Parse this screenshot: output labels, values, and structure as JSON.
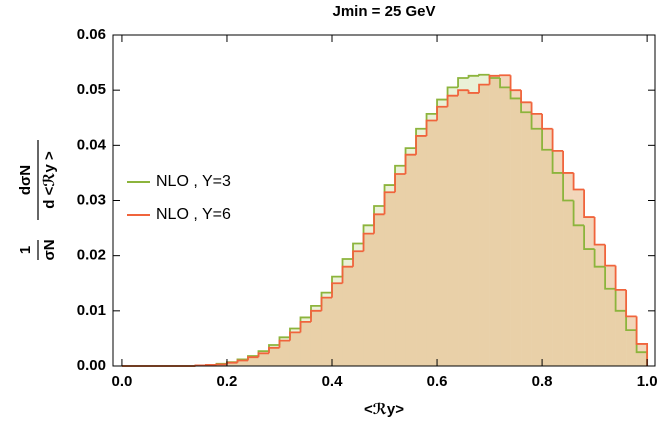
{
  "chart_data": {
    "type": "histogram",
    "title": "Jmin = 25 GeV",
    "xlabel": "<ℛy>",
    "ylabel": {
      "left_numerator": "1",
      "left_denominator": "σN",
      "right_numerator": "dσN",
      "right_denominator": "d <ℛy >"
    },
    "bins": [
      0,
      0.02,
      0.04,
      0.06,
      0.08,
      0.1,
      0.12,
      0.14,
      0.16,
      0.18,
      0.2,
      0.22,
      0.24,
      0.26,
      0.28,
      0.3,
      0.32,
      0.34,
      0.36,
      0.38,
      0.4,
      0.42,
      0.44,
      0.46,
      0.48,
      0.5,
      0.52,
      0.54,
      0.56,
      0.58,
      0.6,
      0.62,
      0.64,
      0.66,
      0.68,
      0.7,
      0.72,
      0.74,
      0.76,
      0.78,
      0.8,
      0.82,
      0.84,
      0.86,
      0.88,
      0.9,
      0.92,
      0.94,
      0.96,
      0.98,
      1.0
    ],
    "series": [
      {
        "name": "NLO , Y=3",
        "color": "#8cb43c",
        "fill": "rgba(196,214,140,0.35)",
        "values": [
          0,
          0,
          0,
          0,
          0,
          0,
          0,
          0.0001,
          0.0002,
          0.0004,
          0.0007,
          0.0012,
          0.0018,
          0.0027,
          0.0038,
          0.0052,
          0.0068,
          0.0088,
          0.0109,
          0.0133,
          0.0162,
          0.0194,
          0.0222,
          0.0255,
          0.029,
          0.0328,
          0.0363,
          0.0395,
          0.043,
          0.0457,
          0.0483,
          0.0505,
          0.0522,
          0.0526,
          0.0528,
          0.0522,
          0.0505,
          0.0485,
          0.046,
          0.043,
          0.0392,
          0.035,
          0.03,
          0.0255,
          0.0212,
          0.018,
          0.014,
          0.01,
          0.0065,
          0.0025
        ]
      },
      {
        "name": "NLO , Y=6",
        "color": "#f0643c",
        "fill": "rgba(232,180,130,0.55)",
        "values": [
          0,
          0,
          0,
          0,
          0,
          0,
          0,
          0.0001,
          0.0002,
          0.0003,
          0.0006,
          0.001,
          0.0016,
          0.0023,
          0.0033,
          0.0046,
          0.0061,
          0.008,
          0.01,
          0.0124,
          0.015,
          0.018,
          0.0208,
          0.024,
          0.0275,
          0.0315,
          0.0348,
          0.0383,
          0.0417,
          0.0445,
          0.047,
          0.049,
          0.05,
          0.0495,
          0.051,
          0.0526,
          0.0527,
          0.05,
          0.0478,
          0.0457,
          0.043,
          0.039,
          0.035,
          0.032,
          0.027,
          0.022,
          0.0182,
          0.0138,
          0.009,
          0.004
        ]
      }
    ],
    "xlim": [
      -0.017,
      1.015
    ],
    "ylim": [
      0,
      0.06
    ],
    "xticks": [
      {
        "value": 0,
        "label": "0.0"
      },
      0.2,
      0.4,
      0.6,
      0.8,
      {
        "value": 1,
        "label": "1.0"
      }
    ],
    "yticks": [
      {
        "value": 0,
        "label": "0.00"
      },
      0.01,
      0.02,
      0.03,
      0.04,
      0.05,
      0.06
    ]
  }
}
